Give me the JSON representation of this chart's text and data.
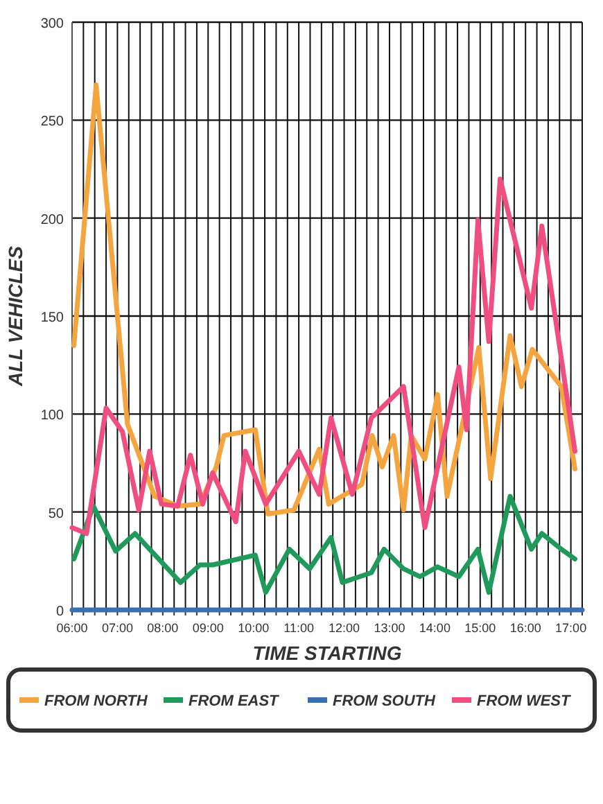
{
  "chart_data": {
    "type": "line",
    "xlabel": "TIME STARTING",
    "ylabel": "ALL VEHICLES",
    "xlim": [
      6,
      17.25
    ],
    "ylim": [
      0,
      300
    ],
    "xticks": [
      {
        "value": 6,
        "label": "06:00"
      },
      {
        "value": 6.25,
        "label": null
      },
      {
        "value": 6.5,
        "label": null
      },
      {
        "value": 6.75,
        "label": null
      },
      {
        "value": 7,
        "label": "07:00"
      },
      {
        "value": 7.25,
        "label": null
      },
      {
        "value": 7.5,
        "label": null
      },
      {
        "value": 7.75,
        "label": null
      },
      {
        "value": 8,
        "label": "08:00"
      },
      {
        "value": 8.25,
        "label": null
      },
      {
        "value": 8.5,
        "label": null
      },
      {
        "value": 8.75,
        "label": null
      },
      {
        "value": 9,
        "label": "09:00"
      },
      {
        "value": 9.25,
        "label": null
      },
      {
        "value": 9.5,
        "label": null
      },
      {
        "value": 9.75,
        "label": null
      },
      {
        "value": 10,
        "label": "10:00"
      },
      {
        "value": 10.25,
        "label": null
      },
      {
        "value": 10.5,
        "label": null
      },
      {
        "value": 10.75,
        "label": null
      },
      {
        "value": 11,
        "label": "11:00"
      },
      {
        "value": 11.25,
        "label": null
      },
      {
        "value": 11.5,
        "label": null
      },
      {
        "value": 11.75,
        "label": null
      },
      {
        "value": 12,
        "label": "12:00"
      },
      {
        "value": 12.25,
        "label": null
      },
      {
        "value": 12.5,
        "label": null
      },
      {
        "value": 12.75,
        "label": null
      },
      {
        "value": 13,
        "label": "13:00"
      },
      {
        "value": 13.25,
        "label": null
      },
      {
        "value": 13.5,
        "label": null
      },
      {
        "value": 13.75,
        "label": null
      },
      {
        "value": 14,
        "label": "14:00"
      },
      {
        "value": 14.25,
        "label": null
      },
      {
        "value": 14.5,
        "label": null
      },
      {
        "value": 14.75,
        "label": null
      },
      {
        "value": 15,
        "label": "15:00"
      },
      {
        "value": 15.25,
        "label": null
      },
      {
        "value": 15.5,
        "label": null
      },
      {
        "value": 15.75,
        "label": null
      },
      {
        "value": 16,
        "label": "16:00"
      },
      {
        "value": 16.25,
        "label": null
      },
      {
        "value": 16.5,
        "label": null
      },
      {
        "value": 16.75,
        "label": null
      },
      {
        "value": 17,
        "label": "17:00"
      },
      {
        "value": 17.25,
        "label": null
      }
    ],
    "yticks": [
      0,
      50,
      100,
      150,
      200,
      250,
      300
    ],
    "grid": true,
    "legend": "bottom",
    "series": [
      {
        "name": "FROM NORTH",
        "color": "#f5a540",
        "x": [
          6.04,
          6.53,
          7.22,
          7.82,
          8.33,
          8.82,
          9.18,
          9.35,
          10.04,
          10.32,
          10.89,
          11.45,
          11.66,
          12.39,
          12.62,
          12.84,
          13.09,
          13.31,
          13.48,
          13.78,
          14.06,
          14.27,
          14.97,
          15.23,
          15.66,
          15.91,
          16.15,
          16.79,
          17.09
        ],
        "values": [
          135,
          268,
          95,
          58,
          53,
          54,
          73,
          89,
          92,
          49,
          51,
          82,
          54,
          64,
          89,
          73,
          89,
          51,
          89,
          77,
          110,
          58,
          134,
          67,
          140,
          114,
          133,
          114,
          72
        ]
      },
      {
        "name": "FROM EAST",
        "color": "#1f9a5b",
        "x": [
          6.04,
          6.47,
          6.96,
          7.39,
          8.39,
          8.82,
          9.1,
          10.04,
          10.27,
          10.79,
          11.24,
          11.71,
          11.96,
          12.6,
          12.88,
          13.31,
          13.67,
          14.06,
          14.53,
          14.95,
          15.19,
          15.66,
          16.13,
          16.36,
          16.79,
          17.09
        ],
        "values": [
          26,
          53,
          30,
          39,
          14,
          23,
          23,
          28,
          9,
          31,
          21,
          37,
          14,
          19,
          31,
          21,
          17,
          22,
          17,
          31,
          9,
          58,
          31,
          39,
          31,
          26
        ]
      },
      {
        "name": "FROM SOUTH",
        "color": "#3b6fb2",
        "x": [
          6,
          17.25
        ],
        "values": [
          0,
          0
        ]
      },
      {
        "name": "FROM WEST",
        "color": "#ee4f80",
        "x": [
          6,
          6.32,
          6.75,
          7.11,
          7.47,
          7.71,
          7.97,
          8.33,
          8.61,
          8.88,
          9.1,
          9.61,
          9.82,
          10.27,
          11,
          11.45,
          11.71,
          12.18,
          12.6,
          13.31,
          13.78,
          14.53,
          14.7,
          14.95,
          15.19,
          15.44,
          16.13,
          16.36,
          17.09
        ],
        "values": [
          42,
          39,
          103,
          91,
          51,
          81,
          54,
          53,
          79,
          54,
          70,
          45,
          81,
          54,
          81,
          59,
          98,
          59,
          98,
          114,
          42,
          124,
          92,
          199,
          137,
          220,
          154,
          196,
          81
        ]
      }
    ]
  }
}
